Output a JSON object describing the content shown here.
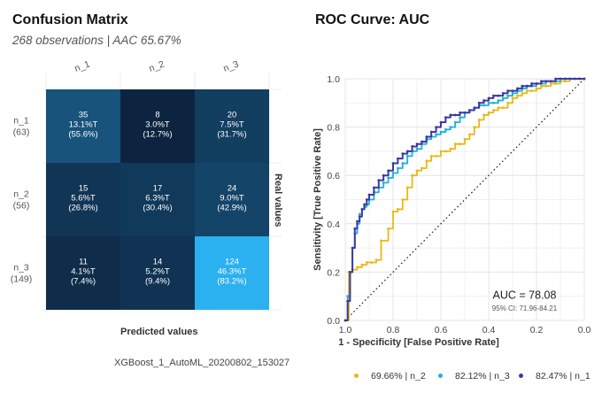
{
  "confusion": {
    "title": "Confusion Matrix",
    "subtitle": "268 observations | AAC 65.67%",
    "xlabel": "Predicted values",
    "ylabel": "Real values",
    "caption": "XGBoost_1_AutoML_20200802_153027",
    "columns": [
      "n_1",
      "n_2",
      "n_3"
    ],
    "rows": [
      {
        "label": "n_1",
        "count": "(63)"
      },
      {
        "label": "n_2",
        "count": "(56)"
      },
      {
        "label": "n_3",
        "count": "(149)"
      }
    ],
    "colors": {
      "low": "#0d2440",
      "high": "#2bb0f0"
    }
  },
  "roc": {
    "title": "ROC Curve: AUC",
    "xlabel": "1 - Specificity [False Positive Rate]",
    "ylabel": "Sensitivity [True Positive Rate]",
    "auc_label": "AUC = 78.08",
    "ci_label": "95% CI: 71.96-84.21"
  },
  "chart_data": [
    {
      "type": "heatmap",
      "title": "Confusion Matrix",
      "subtitle": "268 observations | AAC 65.67%",
      "xlabel": "Predicted values",
      "ylabel": "Real values",
      "columns": [
        "n_1",
        "n_2",
        "n_3"
      ],
      "rows": [
        "n_1",
        "n_2",
        "n_3"
      ],
      "row_totals": [
        63,
        56,
        149
      ],
      "values": [
        [
          35,
          8,
          20
        ],
        [
          15,
          17,
          24
        ],
        [
          11,
          14,
          124
        ]
      ],
      "cell_labels": [
        [
          [
            "35",
            "13.1%T",
            "(55.6%)"
          ],
          [
            "8",
            "3.0%T",
            "(12.7%)"
          ],
          [
            "20",
            "7.5%T",
            "(31.7%)"
          ]
        ],
        [
          [
            "15",
            "5.6%T",
            "(26.8%)"
          ],
          [
            "17",
            "6.3%T",
            "(30.4%)"
          ],
          [
            "24",
            "9.0%T",
            "(42.9%)"
          ]
        ],
        [
          [
            "11",
            "4.1%T",
            "(7.4%)"
          ],
          [
            "14",
            "5.2%T",
            "(9.4%)"
          ],
          [
            "124",
            "46.3%T",
            "(83.2%)"
          ]
        ]
      ]
    },
    {
      "type": "line",
      "title": "ROC Curve: AUC",
      "xlabel": "1 - Specificity [False Positive Rate]",
      "ylabel": "Sensitivity [True Positive Rate]",
      "xlim": [
        1.0,
        0.0
      ],
      "ylim": [
        0.0,
        1.0
      ],
      "x_ticks": [
        "1.0",
        "0.8",
        "0.6",
        "0.4",
        "0.2",
        "0.0"
      ],
      "y_ticks": [
        "0.0",
        "0.2",
        "0.4",
        "0.6",
        "0.8",
        "1.0"
      ],
      "grid": true,
      "legend_position": "bottom",
      "annotations": [
        "AUC = 78.08",
        "95% CI: 71.96-84.21"
      ],
      "series": [
        {
          "name": "69.66% | n_2",
          "color": "#e8b817",
          "x": [
            1.0,
            0.985,
            0.97,
            0.95,
            0.93,
            0.91,
            0.89,
            0.87,
            0.85,
            0.82,
            0.8,
            0.78,
            0.76,
            0.74,
            0.72,
            0.7,
            0.68,
            0.66,
            0.64,
            0.62,
            0.6,
            0.58,
            0.56,
            0.54,
            0.52,
            0.5,
            0.48,
            0.46,
            0.44,
            0.42,
            0.4,
            0.38,
            0.36,
            0.34,
            0.32,
            0.3,
            0.28,
            0.26,
            0.24,
            0.22,
            0.2,
            0.18,
            0.16,
            0.14,
            0.12,
            0.1,
            0.08,
            0.06,
            0.04,
            0.02,
            0.0
          ],
          "y": [
            0.0,
            0.2,
            0.21,
            0.22,
            0.23,
            0.24,
            0.24,
            0.25,
            0.33,
            0.38,
            0.45,
            0.46,
            0.5,
            0.55,
            0.6,
            0.62,
            0.63,
            0.66,
            0.68,
            0.68,
            0.7,
            0.7,
            0.71,
            0.73,
            0.73,
            0.75,
            0.77,
            0.8,
            0.83,
            0.85,
            0.86,
            0.87,
            0.88,
            0.88,
            0.9,
            0.92,
            0.93,
            0.94,
            0.95,
            0.95,
            0.96,
            0.97,
            0.97,
            0.98,
            0.98,
            0.99,
            0.99,
            1.0,
            1.0,
            1.0,
            1.0
          ]
        },
        {
          "name": "82.12% | n_3",
          "color": "#1fb0d8",
          "x": [
            1.0,
            0.99,
            0.98,
            0.97,
            0.96,
            0.95,
            0.94,
            0.93,
            0.92,
            0.91,
            0.9,
            0.88,
            0.86,
            0.84,
            0.82,
            0.8,
            0.78,
            0.76,
            0.74,
            0.72,
            0.7,
            0.68,
            0.66,
            0.64,
            0.62,
            0.6,
            0.58,
            0.56,
            0.54,
            0.52,
            0.5,
            0.48,
            0.46,
            0.44,
            0.42,
            0.4,
            0.38,
            0.36,
            0.34,
            0.32,
            0.3,
            0.28,
            0.26,
            0.24,
            0.22,
            0.2,
            0.18,
            0.16,
            0.14,
            0.12,
            0.1,
            0.08,
            0.06,
            0.04,
            0.02,
            0.0
          ],
          "y": [
            0.0,
            0.1,
            0.2,
            0.3,
            0.36,
            0.4,
            0.44,
            0.46,
            0.47,
            0.48,
            0.5,
            0.53,
            0.55,
            0.57,
            0.59,
            0.61,
            0.63,
            0.65,
            0.68,
            0.7,
            0.71,
            0.73,
            0.75,
            0.76,
            0.77,
            0.78,
            0.79,
            0.8,
            0.82,
            0.84,
            0.86,
            0.87,
            0.88,
            0.89,
            0.89,
            0.9,
            0.9,
            0.91,
            0.92,
            0.93,
            0.94,
            0.95,
            0.96,
            0.97,
            0.97,
            0.98,
            0.98,
            0.99,
            0.99,
            0.99,
            1.0,
            1.0,
            1.0,
            1.0,
            1.0,
            1.0
          ]
        },
        {
          "name": "82.47% | n_1",
          "color": "#3b3aa0",
          "x": [
            1.0,
            0.99,
            0.98,
            0.97,
            0.96,
            0.95,
            0.94,
            0.93,
            0.92,
            0.91,
            0.9,
            0.88,
            0.86,
            0.84,
            0.82,
            0.8,
            0.78,
            0.76,
            0.74,
            0.72,
            0.7,
            0.68,
            0.66,
            0.64,
            0.62,
            0.6,
            0.58,
            0.56,
            0.54,
            0.52,
            0.5,
            0.48,
            0.46,
            0.44,
            0.42,
            0.4,
            0.38,
            0.36,
            0.34,
            0.32,
            0.3,
            0.28,
            0.26,
            0.24,
            0.22,
            0.2,
            0.18,
            0.16,
            0.14,
            0.12,
            0.1,
            0.08,
            0.06,
            0.04,
            0.02,
            0.0
          ],
          "y": [
            0.0,
            0.08,
            0.2,
            0.3,
            0.38,
            0.41,
            0.43,
            0.46,
            0.48,
            0.5,
            0.52,
            0.55,
            0.58,
            0.6,
            0.62,
            0.65,
            0.67,
            0.69,
            0.7,
            0.72,
            0.73,
            0.74,
            0.76,
            0.78,
            0.8,
            0.82,
            0.84,
            0.85,
            0.85,
            0.86,
            0.86,
            0.87,
            0.88,
            0.9,
            0.91,
            0.92,
            0.93,
            0.93,
            0.94,
            0.95,
            0.95,
            0.96,
            0.97,
            0.97,
            0.98,
            0.98,
            0.99,
            0.99,
            0.99,
            1.0,
            1.0,
            1.0,
            1.0,
            1.0,
            1.0,
            1.0
          ]
        }
      ]
    }
  ]
}
